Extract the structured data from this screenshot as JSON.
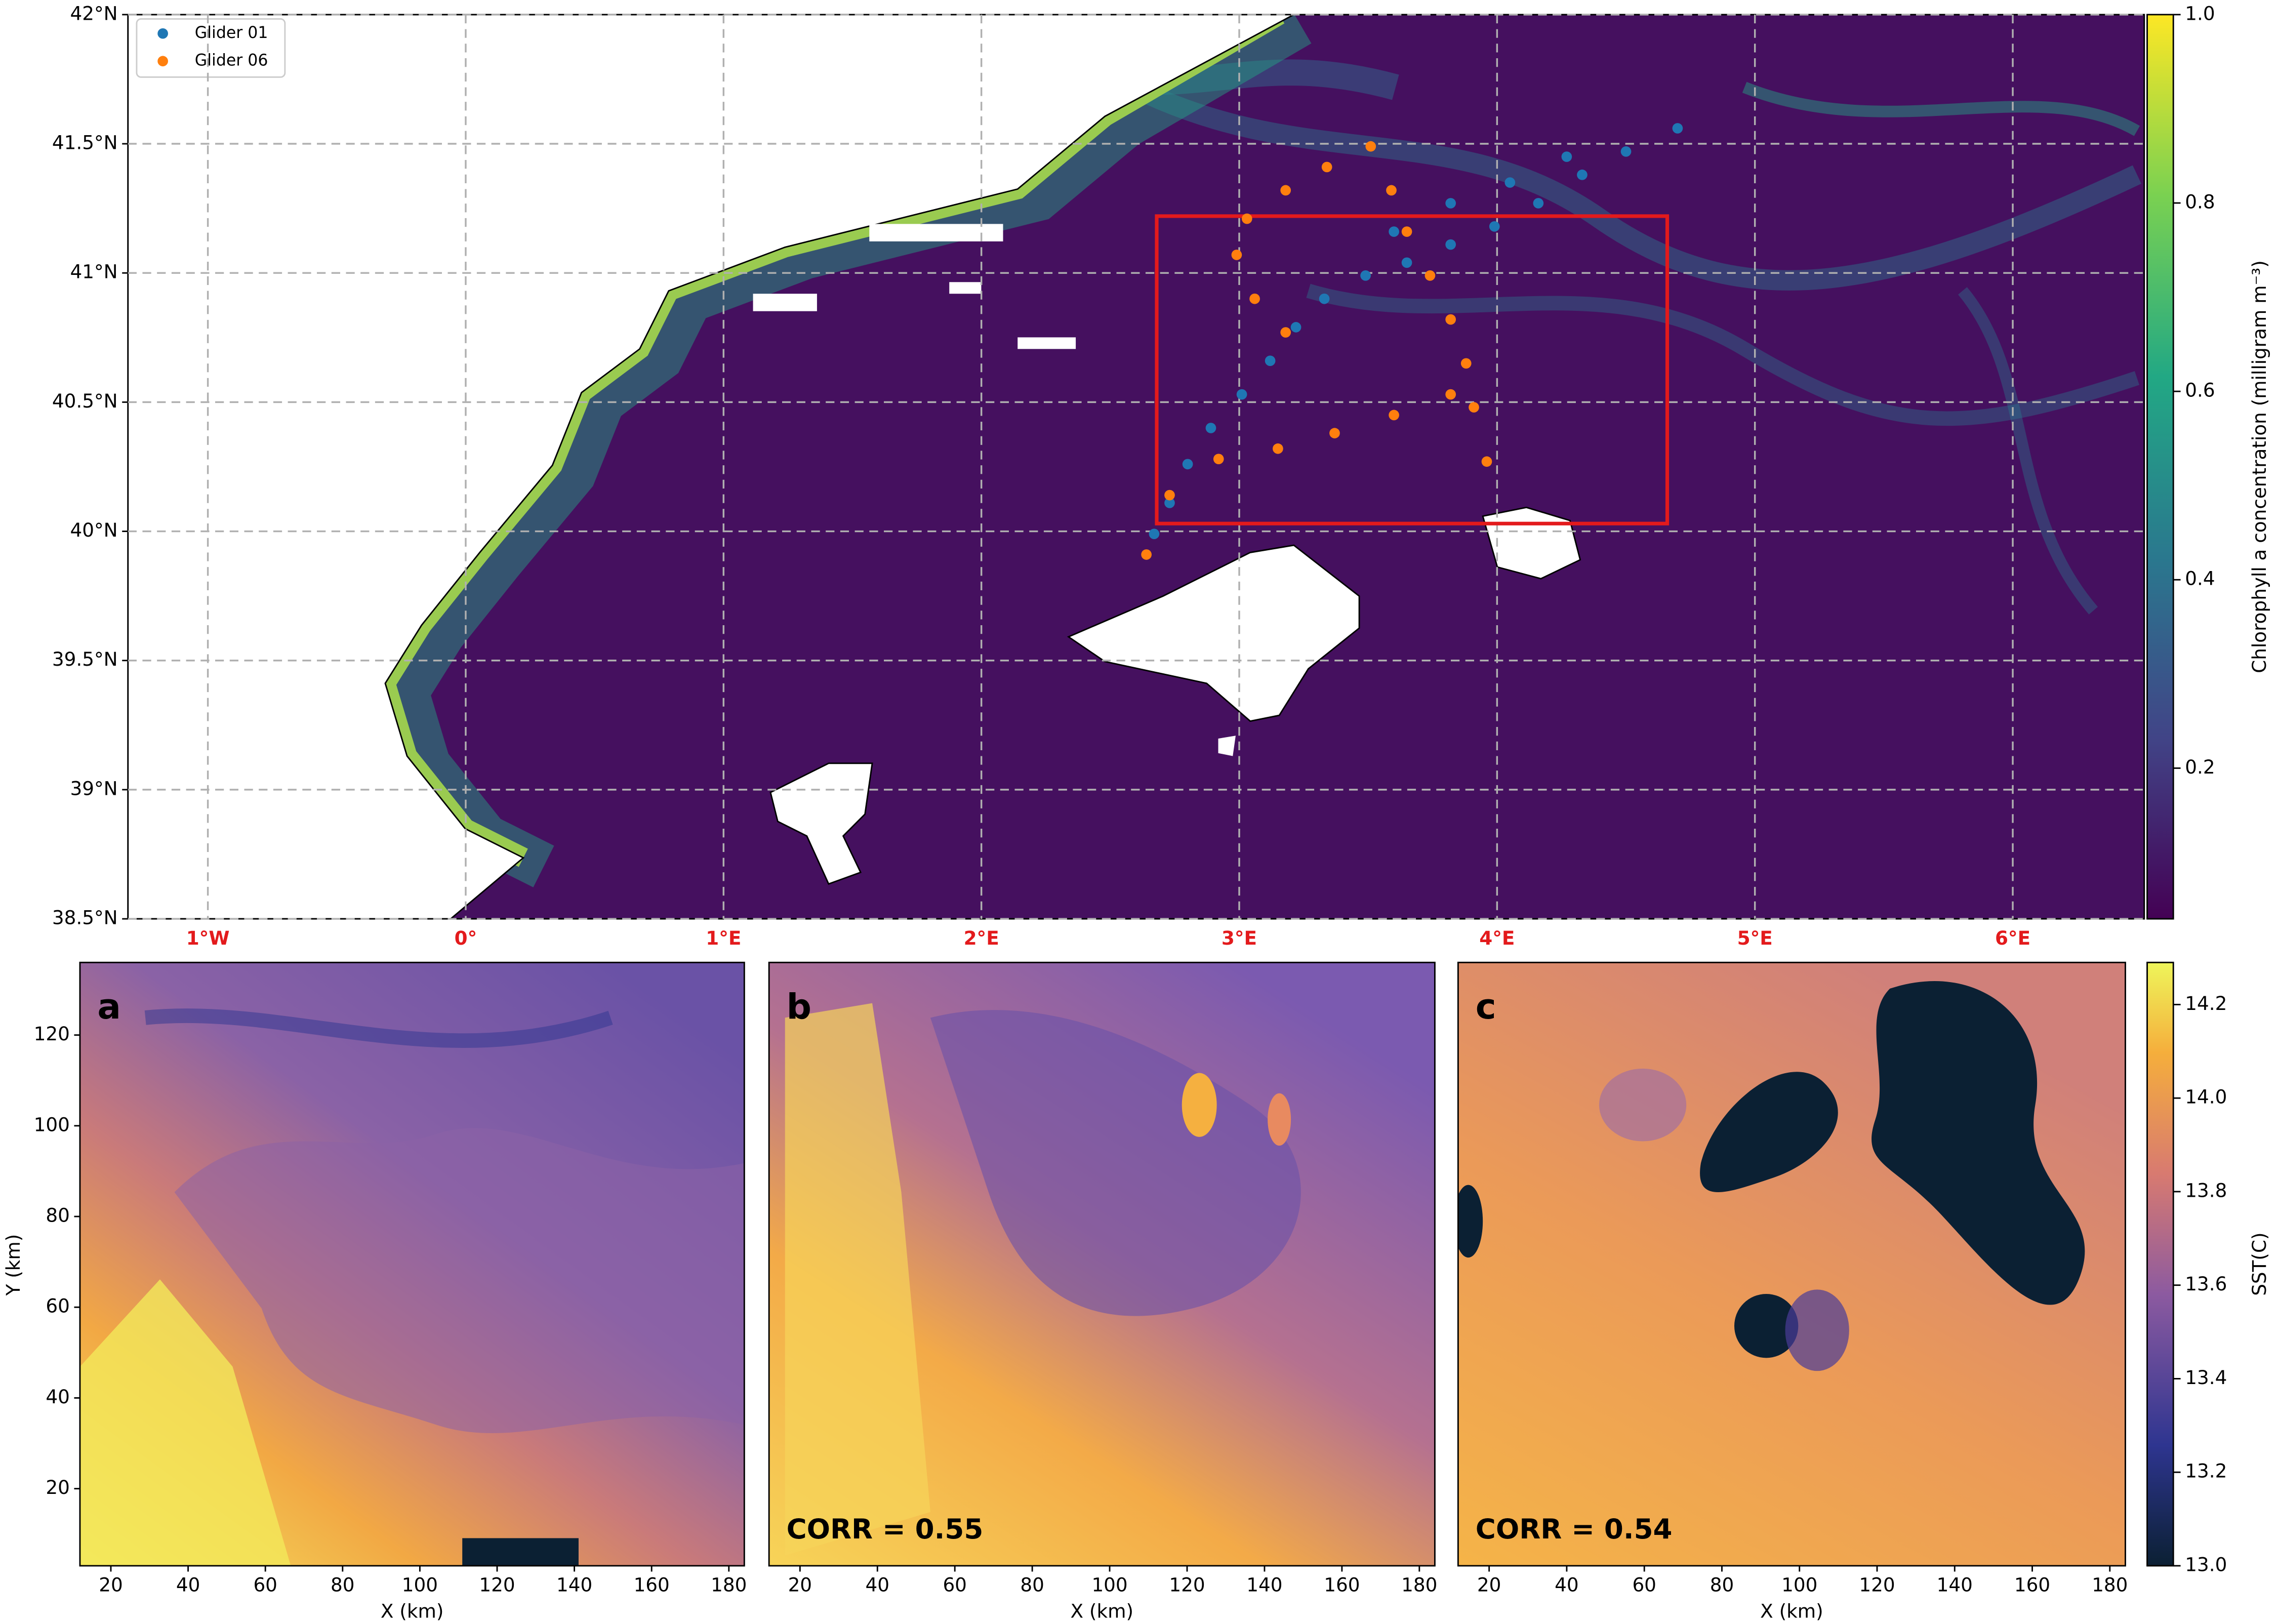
{
  "chart_data": [
    {
      "type": "map",
      "xlim": [
        -1.31,
        6.51
      ],
      "ylim": [
        38.5,
        42
      ],
      "xticks": [
        {
          "value": -1,
          "label": "1°W"
        },
        {
          "value": 0,
          "label": "0°"
        },
        {
          "value": 1,
          "label": "1°E"
        },
        {
          "value": 2,
          "label": "2°E"
        },
        {
          "value": 3,
          "label": "3°E"
        },
        {
          "value": 4,
          "label": "4°E"
        },
        {
          "value": 5,
          "label": "5°E"
        },
        {
          "value": 6,
          "label": "6°E"
        }
      ],
      "yticks": [
        {
          "value": 38.5,
          "label": "38.5°N"
        },
        {
          "value": 39,
          "label": "39°N"
        },
        {
          "value": 39.5,
          "label": "39.5°N"
        },
        {
          "value": 40,
          "label": "40°N"
        },
        {
          "value": 40.5,
          "label": "40.5°N"
        },
        {
          "value": 41,
          "label": "41°N"
        },
        {
          "value": 41.5,
          "label": "41.5°N"
        },
        {
          "value": 42,
          "label": "42°N"
        }
      ],
      "grid": true,
      "xtick_color": "#e31a1c",
      "series": [
        {
          "name": "Glider 01",
          "color": "#1f77b4",
          "x": [
            2.67,
            2.73,
            2.8,
            2.89,
            3.01,
            3.12,
            3.22,
            3.33,
            3.49,
            3.65,
            3.82,
            3.99,
            4.16,
            4.33,
            4.5,
            4.7,
            3.6,
            3.82,
            4.05,
            4.27
          ],
          "values": [
            39.99,
            40.11,
            40.26,
            40.4,
            40.53,
            40.66,
            40.79,
            40.9,
            40.99,
            41.04,
            41.11,
            41.18,
            41.27,
            41.38,
            41.47,
            41.56,
            41.16,
            41.27,
            41.35,
            41.45
          ]
        },
        {
          "name": "Glider 06",
          "color": "#ff7f0e",
          "x": [
            2.64,
            2.73,
            2.92,
            3.15,
            3.37,
            3.6,
            3.82,
            3.88,
            3.82,
            3.74,
            3.65,
            3.59,
            3.51,
            3.34,
            3.18,
            3.03,
            2.99,
            3.06,
            3.18,
            3.91,
            3.96
          ],
          "values": [
            39.91,
            40.14,
            40.28,
            40.32,
            40.38,
            40.45,
            40.53,
            40.65,
            40.82,
            40.99,
            41.16,
            41.32,
            41.49,
            41.41,
            41.32,
            41.21,
            41.07,
            40.9,
            40.77,
            40.48,
            40.27
          ]
        }
      ],
      "region": {
        "color": "#e31a1c",
        "x": [
          2.68,
          4.66
        ],
        "y": [
          40.03,
          41.22
        ]
      },
      "colorbar": {
        "label": "Chlorophyll a concentration (milligram m⁻³)",
        "lim": [
          0.04,
          1.0
        ],
        "ticks": [
          0.2,
          0.4,
          0.6,
          0.8,
          {
            "value": 1,
            "label": "1.0"
          }
        ]
      }
    },
    {
      "type": "heatmap",
      "panel": "a",
      "xlabel": "X (km)",
      "ylabel": "Y (km)",
      "xlim": [
        12,
        184
      ],
      "ylim": [
        3,
        136
      ],
      "xticks": [
        20,
        40,
        60,
        80,
        100,
        120,
        140,
        160,
        180
      ],
      "yticks": [
        20,
        40,
        60,
        80,
        100,
        120
      ]
    },
    {
      "type": "heatmap",
      "panel": "b",
      "xlabel": "X (km)",
      "annotation": "CORR = 0.55",
      "xlim": [
        12,
        184
      ],
      "xticks": [
        20,
        40,
        60,
        80,
        100,
        120,
        140,
        160,
        180
      ]
    },
    {
      "type": "heatmap",
      "panel": "c",
      "xlabel": "X (km)",
      "annotation": "CORR = 0.54",
      "xlim": [
        12,
        184
      ],
      "xticks": [
        20,
        40,
        60,
        80,
        100,
        120,
        140,
        160,
        180
      ],
      "colorbar": {
        "label": "SST(C)",
        "lim": [
          13.0,
          14.29
        ],
        "ticks": [
          {
            "value": 13,
            "label": "13.0"
          },
          13.2,
          13.4,
          13.6,
          13.8,
          {
            "value": 14,
            "label": "14.0"
          },
          14.2
        ]
      }
    }
  ]
}
